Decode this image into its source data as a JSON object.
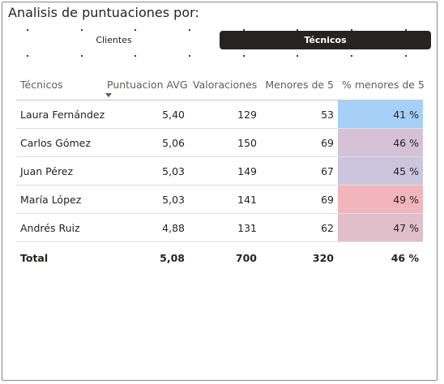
{
  "title": "Analisis de puntuaciones por:",
  "tabs": [
    {
      "label": "Clientes",
      "selected": false
    },
    {
      "label": "Técnicos",
      "selected": true
    }
  ],
  "table": {
    "columns": [
      "Técnicos",
      "Puntuacion AVG",
      "Valoraciones",
      "Menores de 5",
      "% menores de 5"
    ],
    "sort_column": "Puntuacion AVG",
    "sort_direction": "descending",
    "rows": [
      {
        "tecnico": "Laura Fernández",
        "avg": "5,40",
        "valoraciones": "129",
        "menores": "53",
        "pct": "41 %",
        "pct_color": "#a6d0f7"
      },
      {
        "tecnico": "Carlos Gómez",
        "avg": "5,06",
        "valoraciones": "150",
        "menores": "69",
        "pct": "46 %",
        "pct_color": "#d5c2d6"
      },
      {
        "tecnico": "Juan Pérez",
        "avg": "5,03",
        "valoraciones": "149",
        "menores": "67",
        "pct": "45 %",
        "pct_color": "#cbc6dd"
      },
      {
        "tecnico": "María López",
        "avg": "5,03",
        "valoraciones": "141",
        "menores": "69",
        "pct": "49 %",
        "pct_color": "#f1b5bb"
      },
      {
        "tecnico": "Andrés Ruiz",
        "avg": "4,88",
        "valoraciones": "131",
        "menores": "62",
        "pct": "47 %",
        "pct_color": "#e0bfcb"
      }
    ],
    "total": {
      "label": "Total",
      "avg": "5,08",
      "valoraciones": "700",
      "menores": "320",
      "pct": "46 %"
    }
  },
  "colors": {
    "selected_tab_bg": "#252423",
    "border": "#8a8886"
  }
}
